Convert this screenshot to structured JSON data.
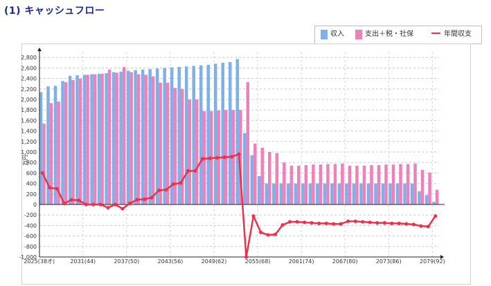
{
  "page_title": "(1) キャッシュフロー",
  "chart_data": {
    "type": "bar",
    "title": "(1) キャッシュフロー",
    "ylabel": "万円",
    "xlabel": "",
    "ylim": [
      -1000,
      2900
    ],
    "yticks": [
      -1000,
      -800,
      -600,
      -400,
      -200,
      0,
      200,
      400,
      600,
      800,
      1000,
      1200,
      1400,
      1600,
      1800,
      2000,
      2200,
      2400,
      2600,
      2800
    ],
    "ytick_labels": [
      "-1,000",
      "-800",
      "-600",
      "-400",
      "-200",
      "0",
      "200",
      "400",
      "600",
      "800",
      "1,000",
      "1,200",
      "1,400",
      "1,600",
      "1,800",
      "2,000",
      "2,200",
      "2,400",
      "2,600",
      "2,800"
    ],
    "x_start_year": 2025,
    "x_end_year": 2079,
    "x_tick_labels": [
      {
        "index": 0,
        "label": "2025(38才)"
      },
      {
        "index": 6,
        "label": "2031(44)"
      },
      {
        "index": 12,
        "label": "2037(50)"
      },
      {
        "index": 18,
        "label": "2043(56)"
      },
      {
        "index": 24,
        "label": "2049(62)"
      },
      {
        "index": 30,
        "label": "2055(68)"
      },
      {
        "index": 36,
        "label": "2061(74)"
      },
      {
        "index": 42,
        "label": "2067(80)"
      },
      {
        "index": 48,
        "label": "2073(86)"
      },
      {
        "index": 54,
        "label": "2079(92)"
      }
    ],
    "legend_position": "top-right",
    "series": [
      {
        "name": "収入",
        "kind": "bar",
        "color": "#7fb0e8",
        "values": [
          2140,
          2250,
          2260,
          2350,
          2450,
          2460,
          2470,
          2480,
          2490,
          2500,
          2520,
          2530,
          2550,
          2560,
          2570,
          2580,
          2590,
          2600,
          2610,
          2620,
          2630,
          2640,
          2650,
          2660,
          2680,
          2700,
          2710,
          2770,
          1360,
          940,
          540,
          400,
          400,
          400,
          400,
          400,
          400,
          400,
          400,
          400,
          400,
          400,
          400,
          400,
          400,
          400,
          400,
          400,
          400,
          400,
          400,
          400,
          250,
          180,
          50
        ]
      },
      {
        "name": "支出＋税・社保",
        "kind": "bar",
        "color": "#ee80bb",
        "values": [
          1540,
          1930,
          1960,
          2330,
          2370,
          2400,
          2470,
          2480,
          2490,
          2570,
          2510,
          2620,
          2520,
          2480,
          2470,
          2440,
          2320,
          2320,
          2220,
          2200,
          2000,
          2000,
          1780,
          1780,
          1790,
          1800,
          1800,
          1800,
          2330,
          1160,
          1080,
          1000,
          980,
          800,
          740,
          740,
          750,
          760,
          760,
          770,
          770,
          780,
          740,
          740,
          740,
          750,
          750,
          760,
          760,
          770,
          770,
          780,
          660,
          610,
          280
        ]
      },
      {
        "name": "年間収支",
        "kind": "line",
        "color": "#f0304a",
        "values": [
          600,
          320,
          300,
          20,
          90,
          80,
          0,
          0,
          0,
          -60,
          0,
          -80,
          20,
          90,
          100,
          130,
          270,
          280,
          390,
          410,
          640,
          640,
          870,
          880,
          890,
          900,
          910,
          960,
          -1000,
          -220,
          -530,
          -580,
          -570,
          -390,
          -330,
          -330,
          -340,
          -350,
          -360,
          -360,
          -370,
          -370,
          -320,
          -320,
          -330,
          -340,
          -350,
          -350,
          -360,
          -360,
          -370,
          -380,
          -410,
          -420,
          -220
        ]
      }
    ]
  }
}
